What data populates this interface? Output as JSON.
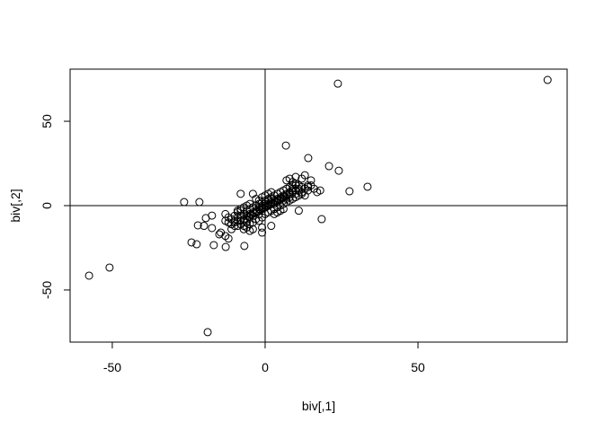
{
  "chart_data": {
    "type": "scatter",
    "title": "",
    "xlabel": "biv[,1]",
    "ylabel": "biv[,2]",
    "xlim": [
      -63.8,
      98.8
    ],
    "ylim": [
      -80.9,
      80.9
    ],
    "xticks": [
      -50,
      0,
      50
    ],
    "yticks": [
      -50,
      0,
      50
    ],
    "xtick_labels": [
      "-50",
      "0",
      "50"
    ],
    "ytick_labels": [
      "-50",
      "0",
      "50"
    ],
    "reference_lines": {
      "vertical": 0,
      "horizontal": 0
    },
    "grid": false,
    "marker": "open-circle",
    "color": "#000000",
    "points": [
      [
        92.4,
        74.5
      ],
      [
        23.8,
        72.3
      ],
      [
        -57.6,
        -41.5
      ],
      [
        -50.9,
        -36.7
      ],
      [
        -18.8,
        -75
      ],
      [
        6.8,
        35.6
      ],
      [
        14.1,
        28.2
      ],
      [
        20.9,
        23.4
      ],
      [
        24.1,
        20.7
      ],
      [
        33.5,
        11.2
      ],
      [
        27.6,
        8.5
      ],
      [
        18.5,
        -8
      ],
      [
        -26.5,
        2.1
      ],
      [
        -21.5,
        2.1
      ],
      [
        -24.1,
        -21.8
      ],
      [
        -22.4,
        -22.9
      ],
      [
        -16.8,
        -23.4
      ],
      [
        -6.8,
        -23.9
      ],
      [
        -12.9,
        -24.5
      ],
      [
        -22,
        -11.7
      ],
      [
        -19.4,
        -7.4
      ],
      [
        -17.4,
        -5.9
      ],
      [
        -17.4,
        -13.3
      ],
      [
        -14.5,
        -16
      ],
      [
        -13,
        -18
      ],
      [
        -12,
        -19.5
      ],
      [
        -15,
        -17
      ],
      [
        -20,
        -12
      ],
      [
        -11,
        -14
      ],
      [
        -9,
        -9
      ],
      [
        -8,
        7
      ],
      [
        -4,
        7
      ],
      [
        -13,
        -5
      ],
      [
        11,
        -3
      ],
      [
        14,
        12
      ],
      [
        16,
        10
      ],
      [
        17,
        8
      ],
      [
        12,
        16
      ],
      [
        13,
        18
      ],
      [
        10,
        17
      ],
      [
        15,
        15
      ],
      [
        8,
        16
      ],
      [
        9,
        14
      ],
      [
        7,
        15
      ],
      [
        18,
        9
      ],
      [
        14,
        9
      ],
      [
        -10,
        -10
      ],
      [
        -9,
        -12
      ],
      [
        -8,
        -11
      ],
      [
        -7,
        -8
      ],
      [
        -6,
        -10
      ],
      [
        -5,
        -7
      ],
      [
        -4,
        -6
      ],
      [
        -3,
        -4
      ],
      [
        -2,
        -5
      ],
      [
        -1,
        -2
      ],
      [
        0,
        -1
      ],
      [
        1,
        0
      ],
      [
        2,
        1
      ],
      [
        3,
        2
      ],
      [
        4,
        3
      ],
      [
        5,
        4
      ],
      [
        6,
        5
      ],
      [
        7,
        6
      ],
      [
        8,
        7
      ],
      [
        9,
        8
      ],
      [
        10,
        9
      ],
      [
        11,
        10
      ],
      [
        -10,
        -6
      ],
      [
        -9,
        -4
      ],
      [
        -8,
        -3
      ],
      [
        -7,
        -5
      ],
      [
        -6,
        -3
      ],
      [
        -5,
        -2
      ],
      [
        -4,
        -1
      ],
      [
        -3,
        0
      ],
      [
        -2,
        1
      ],
      [
        -1,
        2
      ],
      [
        0,
        3
      ],
      [
        1,
        4
      ],
      [
        2,
        5
      ],
      [
        3,
        6
      ],
      [
        4,
        7
      ],
      [
        5,
        8
      ],
      [
        6,
        9
      ],
      [
        7,
        10
      ],
      [
        8,
        11
      ],
      [
        9,
        12
      ],
      [
        10,
        12
      ],
      [
        -11,
        -8
      ],
      [
        -10,
        -9
      ],
      [
        -9,
        -7
      ],
      [
        -8,
        -6
      ],
      [
        -7,
        -9
      ],
      [
        -6,
        -6
      ],
      [
        -5,
        -5
      ],
      [
        -4,
        -4
      ],
      [
        -3,
        -3
      ],
      [
        -2,
        -2
      ],
      [
        -1,
        -1
      ],
      [
        0,
        0
      ],
      [
        1,
        1
      ],
      [
        2,
        2
      ],
      [
        3,
        3
      ],
      [
        4,
        4
      ],
      [
        5,
        5
      ],
      [
        6,
        6
      ],
      [
        7,
        7
      ],
      [
        8,
        8
      ],
      [
        9,
        9
      ],
      [
        10,
        7
      ],
      [
        -7,
        -12
      ],
      [
        -6,
        -13
      ],
      [
        -5,
        -11
      ],
      [
        -4,
        -10
      ],
      [
        -3,
        -8
      ],
      [
        -2,
        -9
      ],
      [
        -1,
        -7
      ],
      [
        0,
        -5
      ],
      [
        1,
        -4
      ],
      [
        2,
        -3
      ],
      [
        3,
        -2
      ],
      [
        4,
        -1
      ],
      [
        5,
        0
      ],
      [
        6,
        1
      ],
      [
        7,
        2
      ],
      [
        8,
        3
      ],
      [
        9,
        4
      ],
      [
        10,
        5
      ],
      [
        11,
        6
      ],
      [
        12,
        7
      ],
      [
        -3,
        4
      ],
      [
        -2,
        3
      ],
      [
        -1,
        5
      ],
      [
        0,
        6
      ],
      [
        1,
        7
      ],
      [
        2,
        8
      ],
      [
        -5,
        1
      ],
      [
        -6,
        0
      ],
      [
        -7,
        -1
      ],
      [
        -8,
        -2
      ],
      [
        -9,
        -3
      ],
      [
        3,
        -5
      ],
      [
        4,
        -4
      ],
      [
        5,
        -3
      ],
      [
        6,
        -2
      ],
      [
        -1,
        -13
      ],
      [
        -1,
        -16
      ],
      [
        2,
        -12
      ],
      [
        -4,
        -14
      ],
      [
        -5,
        -15
      ],
      [
        -7,
        -14
      ],
      [
        1.5,
        0.5
      ],
      [
        2.5,
        1.5
      ],
      [
        3.5,
        2.5
      ],
      [
        0.5,
        -0.5
      ],
      [
        -0.5,
        -1.5
      ],
      [
        -1.5,
        -2.5
      ],
      [
        -2.5,
        -3.5
      ],
      [
        4.5,
        3.5
      ],
      [
        5.5,
        4.5
      ],
      [
        6.5,
        5.5
      ],
      [
        -3.5,
        -4.5
      ],
      [
        -4.5,
        -5.5
      ],
      [
        -5.5,
        -6.5
      ],
      [
        1,
        3
      ],
      [
        2,
        4
      ],
      [
        -1,
        0
      ],
      [
        -2,
        -1
      ],
      [
        3,
        1
      ],
      [
        4,
        2
      ],
      [
        0,
        1
      ],
      [
        6,
        3
      ],
      [
        7,
        4
      ],
      [
        8,
        5
      ],
      [
        -6,
        -8
      ],
      [
        -8,
        -9
      ],
      [
        12,
        11
      ],
      [
        13,
        10
      ],
      [
        11,
        12
      ],
      [
        10,
        13
      ],
      [
        12,
        8
      ],
      [
        13,
        6
      ],
      [
        9,
        10
      ],
      [
        14,
        11
      ],
      [
        15,
        12
      ],
      [
        11,
        9
      ],
      [
        -12,
        -10
      ],
      [
        -11,
        -11
      ],
      [
        -12,
        -7
      ],
      [
        -13,
        -9
      ],
      [
        -10,
        -12
      ]
    ]
  }
}
